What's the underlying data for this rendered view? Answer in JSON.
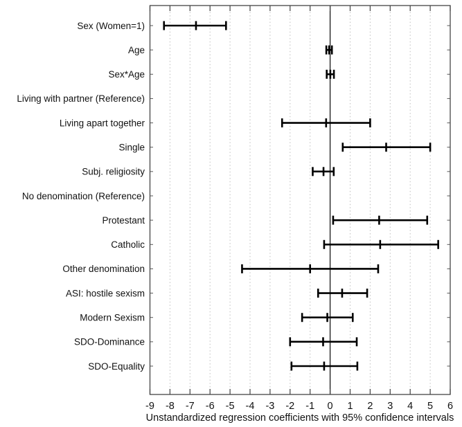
{
  "chart_data": {
    "type": "scatter",
    "subtype": "forest-plot-with-error-bars",
    "title": "",
    "xlabel": "Unstandardized regression coefficients with 95% confidence intervals",
    "ylabel": "",
    "xlim": [
      -9,
      6
    ],
    "xticks": [
      -9,
      -8,
      -7,
      -6,
      -5,
      -4,
      -3,
      -2,
      -1,
      0,
      1,
      2,
      3,
      4,
      5,
      6
    ],
    "grid": "dotted-vertical-at-integers",
    "zero_reference_line": 0,
    "legend": "none",
    "colors": {
      "error_bar": "#000000",
      "gridline": "#bdbdbd",
      "frame": "#444444",
      "zero_line": "#222222",
      "text": "#111111",
      "background": "#ffffff"
    },
    "rows": [
      {
        "label": "Sex (Women=1)",
        "estimate": -6.7,
        "ci_low": -8.3,
        "ci_high": -5.2
      },
      {
        "label": "Age",
        "estimate": -0.05,
        "ci_low": -0.19,
        "ci_high": 0.09
      },
      {
        "label": "Sex*Age",
        "estimate": 0.01,
        "ci_low": -0.17,
        "ci_high": 0.19
      },
      {
        "label": "Living with partner (Reference)",
        "estimate": null,
        "ci_low": null,
        "ci_high": null
      },
      {
        "label": "Living apart together",
        "estimate": -0.2,
        "ci_low": -2.4,
        "ci_high": 2.0
      },
      {
        "label": "Single",
        "estimate": 2.8,
        "ci_low": 0.63,
        "ci_high": 5.0
      },
      {
        "label": "Subj. religiosity",
        "estimate": -0.33,
        "ci_low": -0.87,
        "ci_high": 0.18
      },
      {
        "label": "No denomination (Reference)",
        "estimate": null,
        "ci_low": null,
        "ci_high": null
      },
      {
        "label": "Protestant",
        "estimate": 2.45,
        "ci_low": 0.15,
        "ci_high": 4.85
      },
      {
        "label": "Catholic",
        "estimate": 2.5,
        "ci_low": -0.3,
        "ci_high": 5.4
      },
      {
        "label": "Other denomination",
        "estimate": -1.0,
        "ci_low": -4.4,
        "ci_high": 2.4
      },
      {
        "label": "ASI: hostile sexism",
        "estimate": 0.6,
        "ci_low": -0.6,
        "ci_high": 1.85
      },
      {
        "label": "Modern Sexism",
        "estimate": -0.14,
        "ci_low": -1.4,
        "ci_high": 1.13
      },
      {
        "label": "SDO-Dominance",
        "estimate": -0.35,
        "ci_low": -2.0,
        "ci_high": 1.33
      },
      {
        "label": "SDO-Equality",
        "estimate": -0.3,
        "ci_low": -1.93,
        "ci_high": 1.36
      }
    ]
  }
}
